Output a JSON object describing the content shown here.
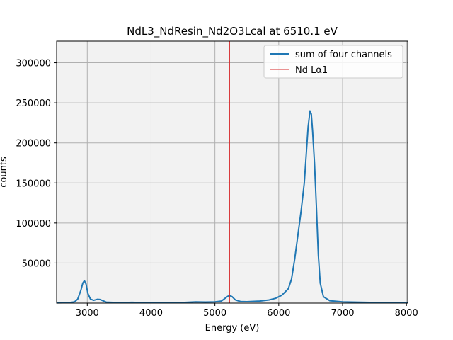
{
  "chart_data": {
    "type": "line",
    "title": "NdL3_NdResin_Nd2O3Lcal at 6510.1 eV",
    "xlabel": "Energy  (eV)",
    "ylabel": "counts",
    "xlim": [
      2520,
      8020
    ],
    "ylim": [
      0,
      327000
    ],
    "x_ticks": [
      3000,
      4000,
      5000,
      6000,
      7000,
      8000
    ],
    "y_ticks": [
      50000,
      100000,
      150000,
      200000,
      250000,
      300000
    ],
    "grid": true,
    "legend_position": "top-right",
    "series": [
      {
        "name": "sum of four channels",
        "color": "#1f77b4",
        "points": [
          [
            2520,
            300
          ],
          [
            2700,
            500
          ],
          [
            2800,
            1500
          ],
          [
            2850,
            5000
          ],
          [
            2900,
            16000
          ],
          [
            2930,
            25000
          ],
          [
            2955,
            28000
          ],
          [
            2980,
            24000
          ],
          [
            3010,
            12000
          ],
          [
            3050,
            5000
          ],
          [
            3100,
            3500
          ],
          [
            3160,
            4800
          ],
          [
            3200,
            4500
          ],
          [
            3260,
            2500
          ],
          [
            3300,
            1200
          ],
          [
            3500,
            600
          ],
          [
            3700,
            1000
          ],
          [
            3900,
            500
          ],
          [
            4200,
            600
          ],
          [
            4500,
            800
          ],
          [
            4700,
            1500
          ],
          [
            4850,
            1300
          ],
          [
            5000,
            1500
          ],
          [
            5100,
            2500
          ],
          [
            5150,
            5500
          ],
          [
            5200,
            8500
          ],
          [
            5230,
            9500
          ],
          [
            5270,
            8000
          ],
          [
            5320,
            4000
          ],
          [
            5400,
            2000
          ],
          [
            5500,
            1800
          ],
          [
            5700,
            2500
          ],
          [
            5850,
            4000
          ],
          [
            5950,
            6000
          ],
          [
            6050,
            10000
          ],
          [
            6150,
            18000
          ],
          [
            6200,
            30000
          ],
          [
            6250,
            55000
          ],
          [
            6300,
            85000
          ],
          [
            6350,
            115000
          ],
          [
            6400,
            150000
          ],
          [
            6430,
            185000
          ],
          [
            6460,
            220000
          ],
          [
            6490,
            240000
          ],
          [
            6510,
            236000
          ],
          [
            6530,
            215000
          ],
          [
            6560,
            175000
          ],
          [
            6590,
            120000
          ],
          [
            6620,
            60000
          ],
          [
            6650,
            25000
          ],
          [
            6700,
            8000
          ],
          [
            6800,
            3000
          ],
          [
            7000,
            1500
          ],
          [
            7500,
            800
          ],
          [
            8020,
            400
          ]
        ]
      },
      {
        "name": "Nd Lα1",
        "color": "#d62728",
        "vline_x": 5230
      }
    ]
  }
}
